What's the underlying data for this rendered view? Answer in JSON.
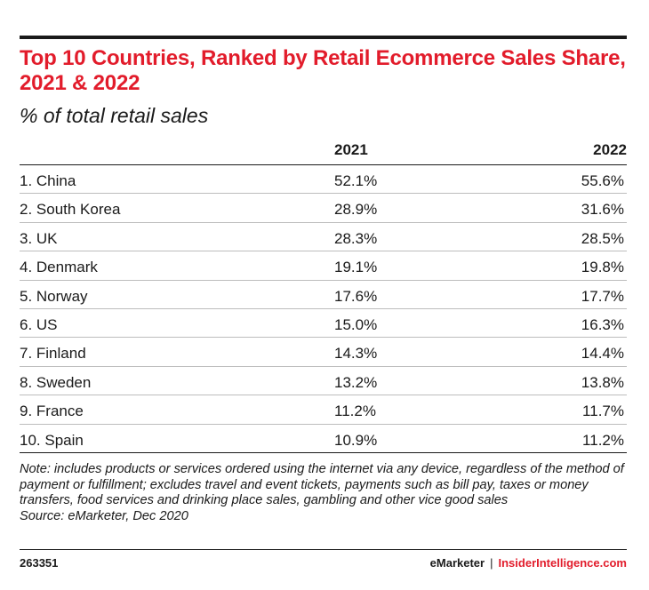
{
  "chart_data": {
    "type": "table",
    "title": "Top 10 Countries, Ranked by Retail Ecommerce Sales Share, 2021 & 2022",
    "subtitle": "% of total retail sales",
    "columns": [
      "2021",
      "2022"
    ],
    "rows": [
      {
        "label": "1. China",
        "values": [
          "52.1%",
          "55.6%"
        ]
      },
      {
        "label": "2. South Korea",
        "values": [
          "28.9%",
          "31.6%"
        ]
      },
      {
        "label": "3. UK",
        "values": [
          "28.3%",
          "28.5%"
        ]
      },
      {
        "label": "4. Denmark",
        "values": [
          "19.1%",
          "19.8%"
        ]
      },
      {
        "label": "5. Norway",
        "values": [
          "17.6%",
          "17.7%"
        ]
      },
      {
        "label": "6. US",
        "values": [
          "15.0%",
          "16.3%"
        ]
      },
      {
        "label": "7. Finland",
        "values": [
          "14.3%",
          "14.4%"
        ]
      },
      {
        "label": "8. Sweden",
        "values": [
          "13.2%",
          "13.8%"
        ]
      },
      {
        "label": "9. France",
        "values": [
          "11.2%",
          "11.7%"
        ]
      },
      {
        "label": "10. Spain",
        "values": [
          "10.9%",
          "11.2%"
        ]
      }
    ],
    "note": "Note: includes products or services ordered using the internet via any device, regardless of the method of payment or fulfillment; excludes travel and event tickets, payments such as bill pay, taxes or money transfers, food services and drinking place sales, gambling and other vice good sales",
    "source": "Source: eMarketer, Dec 2020"
  },
  "footer": {
    "chart_id": "263351",
    "brand": "eMarketer",
    "separator": "|",
    "brand2": "InsiderIntelligence.com"
  },
  "colors": {
    "accent": "#e21c2b",
    "text": "#1a1a1a",
    "row_rule": "#bdbdbd"
  }
}
